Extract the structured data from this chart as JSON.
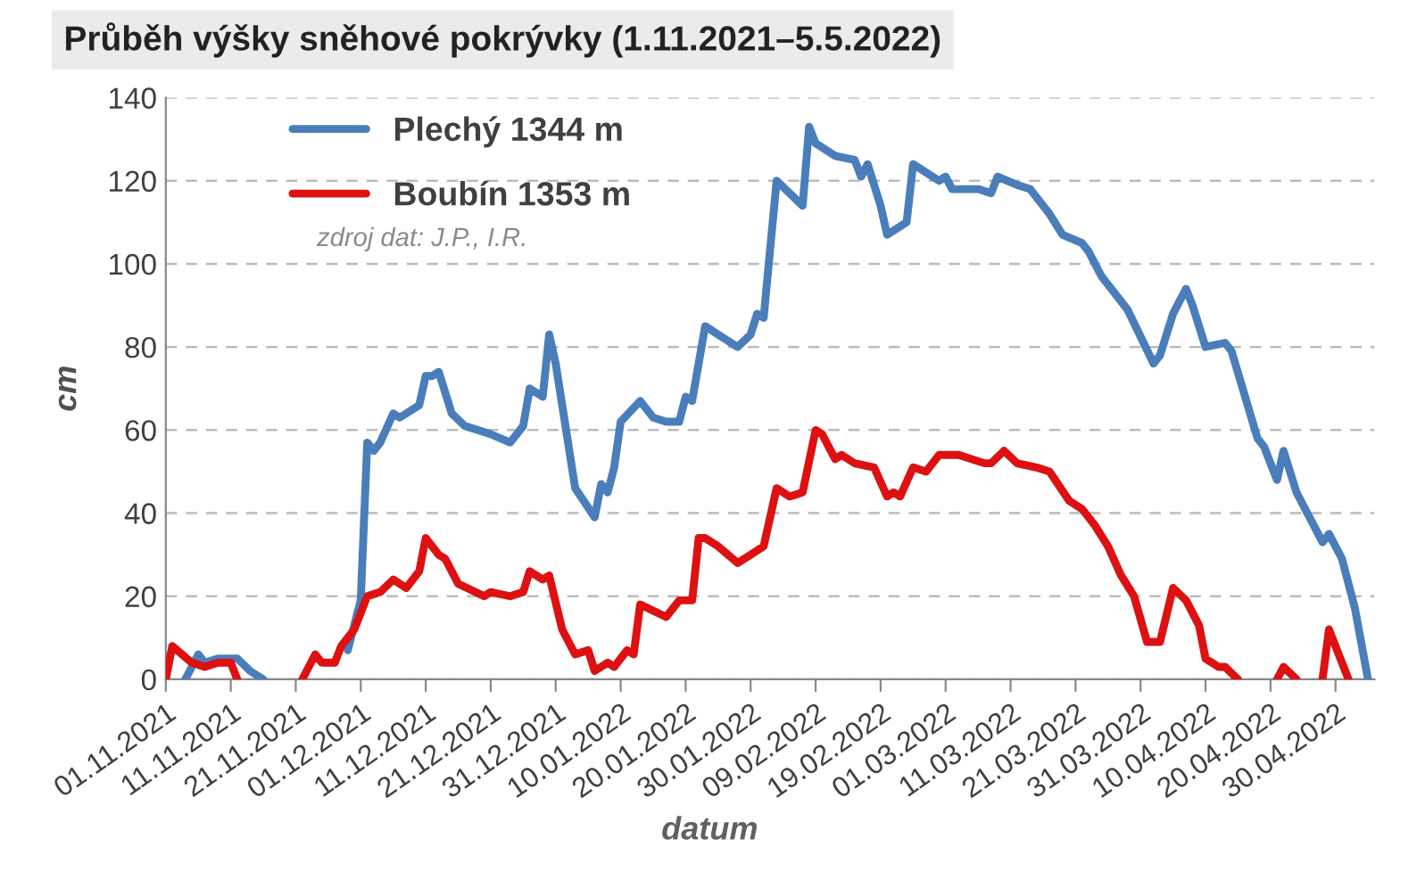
{
  "chart_data": {
    "type": "line",
    "title": "Průběh výšky sněhové pokrývky (1.11.2021–5.5.2022)",
    "xlabel": "datum",
    "ylabel": "cm",
    "annotations": [
      "zdroj dat: J.P., I.R."
    ],
    "series": [
      {
        "name": "Plechý 1344 m",
        "color": "#4a7ebb",
        "x": [
          "2021-11-04",
          "2021-11-06",
          "2021-11-07",
          "2021-11-09",
          "2021-11-12",
          "2021-11-14",
          "2021-11-16",
          "2021-11-21",
          "2021-11-29",
          "2021-12-01",
          "2021-12-02",
          "2021-12-03",
          "2021-12-04",
          "2021-12-06",
          "2021-12-07",
          "2021-12-10",
          "2021-12-11",
          "2021-12-12",
          "2021-12-13",
          "2021-12-14",
          "2021-12-15",
          "2021-12-17",
          "2021-12-19",
          "2021-12-21",
          "2021-12-24",
          "2021-12-26",
          "2021-12-27",
          "2021-12-29",
          "2021-12-30",
          "2021-12-31",
          "2022-01-02",
          "2022-01-03",
          "2022-01-06",
          "2022-01-07",
          "2022-01-08",
          "2022-01-09",
          "2022-01-10",
          "2022-01-13",
          "2022-01-15",
          "2022-01-17",
          "2022-01-19",
          "2022-01-20",
          "2022-01-21",
          "2022-01-23",
          "2022-01-25",
          "2022-01-28",
          "2022-01-30",
          "2022-01-31",
          "2022-02-01",
          "2022-02-03",
          "2022-02-07",
          "2022-02-08",
          "2022-02-09",
          "2022-02-12",
          "2022-02-15",
          "2022-02-16",
          "2022-02-17",
          "2022-02-19",
          "2022-02-20",
          "2022-02-23",
          "2022-02-24",
          "2022-02-26",
          "2022-02-28",
          "2022-03-01",
          "2022-03-02",
          "2022-03-06",
          "2022-03-08",
          "2022-03-09",
          "2022-03-12",
          "2022-03-14",
          "2022-03-17",
          "2022-03-19",
          "2022-03-22",
          "2022-03-23",
          "2022-03-25",
          "2022-03-29",
          "2022-04-02",
          "2022-04-03",
          "2022-04-05",
          "2022-04-07",
          "2022-04-08",
          "2022-04-10",
          "2022-04-13",
          "2022-04-14",
          "2022-04-18",
          "2022-04-19",
          "2022-04-21",
          "2022-04-22",
          "2022-04-24",
          "2022-04-25",
          "2022-04-28",
          "2022-04-29",
          "2022-05-01",
          "2022-05-03",
          "2022-05-05"
        ],
        "values": [
          0,
          6,
          4,
          5,
          5,
          2,
          0,
          null,
          7,
          19,
          57,
          55,
          57,
          64,
          63,
          66,
          73,
          73,
          74,
          69,
          64,
          61,
          60,
          59,
          57,
          61,
          70,
          68,
          83,
          76,
          56,
          46,
          39,
          47,
          45,
          51,
          62,
          67,
          63,
          62,
          62,
          68,
          67,
          85,
          83,
          80,
          83,
          88,
          87,
          120,
          114,
          133,
          129,
          126,
          125,
          121,
          124,
          114,
          107,
          110,
          124,
          122,
          120,
          121,
          118,
          118,
          117,
          121,
          119,
          118,
          112,
          107,
          105,
          103,
          97,
          89,
          76,
          78,
          88,
          94,
          90,
          80,
          81,
          79,
          58,
          56,
          48,
          55,
          45,
          42,
          33,
          35,
          29,
          17,
          0
        ]
      },
      {
        "name": "Boubín 1353 m",
        "color": "#dd1111",
        "x": [
          "2021-11-01",
          "2021-11-02",
          "2021-11-05",
          "2021-11-07",
          "2021-11-09",
          "2021-11-11",
          "2021-11-12",
          "2021-11-16",
          "2021-11-22",
          "2021-11-24",
          "2021-11-25",
          "2021-11-27",
          "2021-11-28",
          "2021-11-30",
          "2021-12-02",
          "2021-12-04",
          "2021-12-06",
          "2021-12-08",
          "2021-12-10",
          "2021-12-11",
          "2021-12-13",
          "2021-12-14",
          "2021-12-16",
          "2021-12-20",
          "2021-12-21",
          "2021-12-24",
          "2021-12-26",
          "2021-12-27",
          "2021-12-29",
          "2021-12-30",
          "2022-01-01",
          "2022-01-03",
          "2022-01-05",
          "2022-01-06",
          "2022-01-08",
          "2022-01-09",
          "2022-01-11",
          "2022-01-12",
          "2022-01-13",
          "2022-01-17",
          "2022-01-19",
          "2022-01-21",
          "2022-01-22",
          "2022-01-23",
          "2022-01-25",
          "2022-01-28",
          "2022-01-30",
          "2022-02-01",
          "2022-02-03",
          "2022-02-05",
          "2022-02-07",
          "2022-02-09",
          "2022-02-10",
          "2022-02-12",
          "2022-02-13",
          "2022-02-15",
          "2022-02-18",
          "2022-02-20",
          "2022-02-21",
          "2022-02-22",
          "2022-02-24",
          "2022-02-26",
          "2022-02-28",
          "2022-03-03",
          "2022-03-07",
          "2022-03-08",
          "2022-03-10",
          "2022-03-12",
          "2022-03-15",
          "2022-03-17",
          "2022-03-20",
          "2022-03-22",
          "2022-03-24",
          "2022-03-26",
          "2022-03-28",
          "2022-03-30",
          "2022-04-01",
          "2022-04-03",
          "2022-04-05",
          "2022-04-07",
          "2022-04-09",
          "2022-04-10",
          "2022-04-12",
          "2022-04-13",
          "2022-04-15",
          "2022-04-18",
          "2022-04-21",
          "2022-04-22",
          "2022-04-24",
          "2022-04-26",
          "2022-04-28",
          "2022-04-29",
          "2022-05-02"
        ],
        "values": [
          0,
          8,
          4,
          3,
          4,
          4,
          0,
          null,
          0,
          6,
          4,
          4,
          8,
          12,
          20,
          21,
          24,
          22,
          26,
          34,
          30,
          29,
          23,
          20,
          21,
          20,
          21,
          26,
          24,
          25,
          12,
          6,
          7,
          2,
          4,
          3,
          7,
          6,
          18,
          15,
          19,
          19,
          34,
          34,
          32,
          28,
          30,
          32,
          46,
          44,
          45,
          60,
          59,
          53,
          54,
          52,
          51,
          44,
          45,
          44,
          51,
          50,
          54,
          54,
          52,
          52,
          55,
          52,
          51,
          50,
          43,
          41,
          37,
          32,
          25,
          20,
          9,
          9,
          22,
          19,
          13,
          5,
          3,
          3,
          0,
          null,
          0,
          3,
          0,
          null,
          0,
          12,
          0
        ]
      }
    ],
    "xlim": [
      "2021-11-01",
      "2022-05-06"
    ],
    "xticks": [
      {
        "value": "2021-11-01",
        "label": "01.11.2021"
      },
      {
        "value": "2021-11-11",
        "label": "11.11.2021"
      },
      {
        "value": "2021-11-21",
        "label": "21.11.2021"
      },
      {
        "value": "2021-12-01",
        "label": "01.12.2021"
      },
      {
        "value": "2021-12-11",
        "label": "11.12.2021"
      },
      {
        "value": "2021-12-21",
        "label": "21.12.2021"
      },
      {
        "value": "2021-12-31",
        "label": "31.12.2021"
      },
      {
        "value": "2022-01-10",
        "label": "10.01.2022"
      },
      {
        "value": "2022-01-20",
        "label": "20.01.2022"
      },
      {
        "value": "2022-01-30",
        "label": "30.01.2022"
      },
      {
        "value": "2022-02-09",
        "label": "09.02.2022"
      },
      {
        "value": "2022-02-19",
        "label": "19.02.2022"
      },
      {
        "value": "2022-03-01",
        "label": "01.03.2022"
      },
      {
        "value": "2022-03-11",
        "label": "11.03.2022"
      },
      {
        "value": "2022-03-21",
        "label": "21.03.2022"
      },
      {
        "value": "2022-03-31",
        "label": "31.03.2022"
      },
      {
        "value": "2022-04-10",
        "label": "10.04.2022"
      },
      {
        "value": "2022-04-20",
        "label": "20.04.2022"
      },
      {
        "value": "2022-04-30",
        "label": "30.04.2022"
      }
    ],
    "ylim": [
      0,
      140
    ],
    "yticks": [
      0,
      20,
      40,
      60,
      80,
      100,
      120,
      140
    ],
    "grid": "y",
    "legend": "top left",
    "marker": "none",
    "line_style": "solid"
  }
}
